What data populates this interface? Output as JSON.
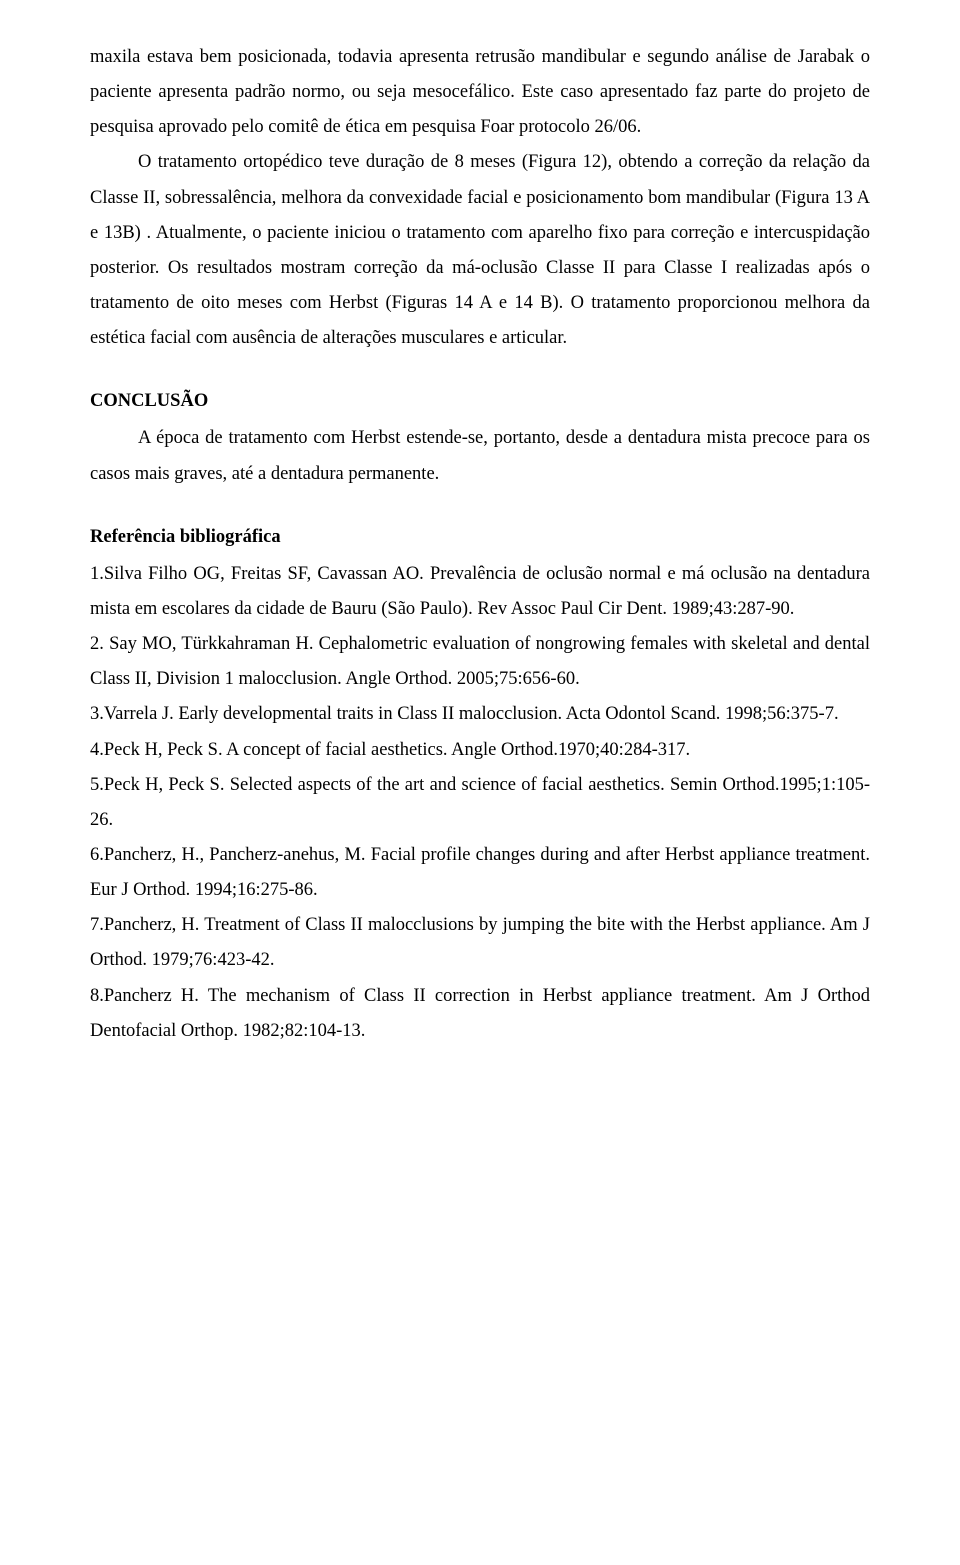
{
  "paragraphs": {
    "p1_cont": "maxila estava bem posicionada, todavia apresenta retrusão mandibular e segundo análise de Jarabak o paciente apresenta padrão normo, ou seja mesocefálico. Este caso apresentado faz parte do projeto de pesquisa aprovado pelo comitê de ética em pesquisa Foar protocolo 26/06.",
    "p2": "O tratamento ortopédico teve duração de 8 meses (Figura 12), obtendo a correção da relação da Classe II, sobressalência, melhora da convexidade facial e posicionamento bom mandibular (Figura 13 A e 13B) . Atualmente, o paciente iniciou o tratamento com aparelho fixo para correção e intercuspidação posterior. Os resultados mostram correção da má-oclusão Classe II para Classe I realizadas após o tratamento de oito meses com Herbst (Figuras  14 A e 14 B). O tratamento proporcionou melhora da estética facial com ausência de alterações musculares e articular."
  },
  "conclusion": {
    "heading": "CONCLUSÃO",
    "body": "A época de tratamento com Herbst estende-se, portanto, desde a dentadura mista precoce para os casos mais graves, até a dentadura permanente."
  },
  "references": {
    "heading": "Referência bibliográfica",
    "items": [
      "1.Silva Filho OG, Freitas SF, Cavassan AO. Prevalência de oclusão normal e má oclusão na dentadura mista em escolares da cidade de Bauru (São Paulo). Rev Assoc Paul Cir Dent. 1989;43:287-90.",
      "2. Say MO, Türkkahraman H. Cephalometric  evaluation of nongrowing females with skeletal and dental Class II, Division 1 malocclusion. Angle Orthod. 2005;75:656-60.",
      "3.Varrela J. Early developmental traits in Class II malocclusion. Acta Odontol Scand. 1998;56:375-7.",
      "4.Peck H, Peck S. A concept of facial aesthetics. Angle Orthod.1970;40:284-317.",
      "5.Peck H, Peck S. Selected aspects of the art and science of facial aesthetics. Semin Orthod.1995;1:105-26.",
      "6.Pancherz, H., Pancherz-anehus, M. Facial profile changes during and after Herbst appliance treatment. Eur J Orthod. 1994;16:275-86.",
      "7.Pancherz, H. Treatment of Class II malocclusions by jumping the bite with the Herbst appliance. Am J Orthod. 1979;76:423-42.",
      "8.Pancherz H. The mechanism of Class II correction in Herbst appliance treatment. Am J Orthod Dentofacial Orthop. 1982;82:104-13."
    ]
  }
}
